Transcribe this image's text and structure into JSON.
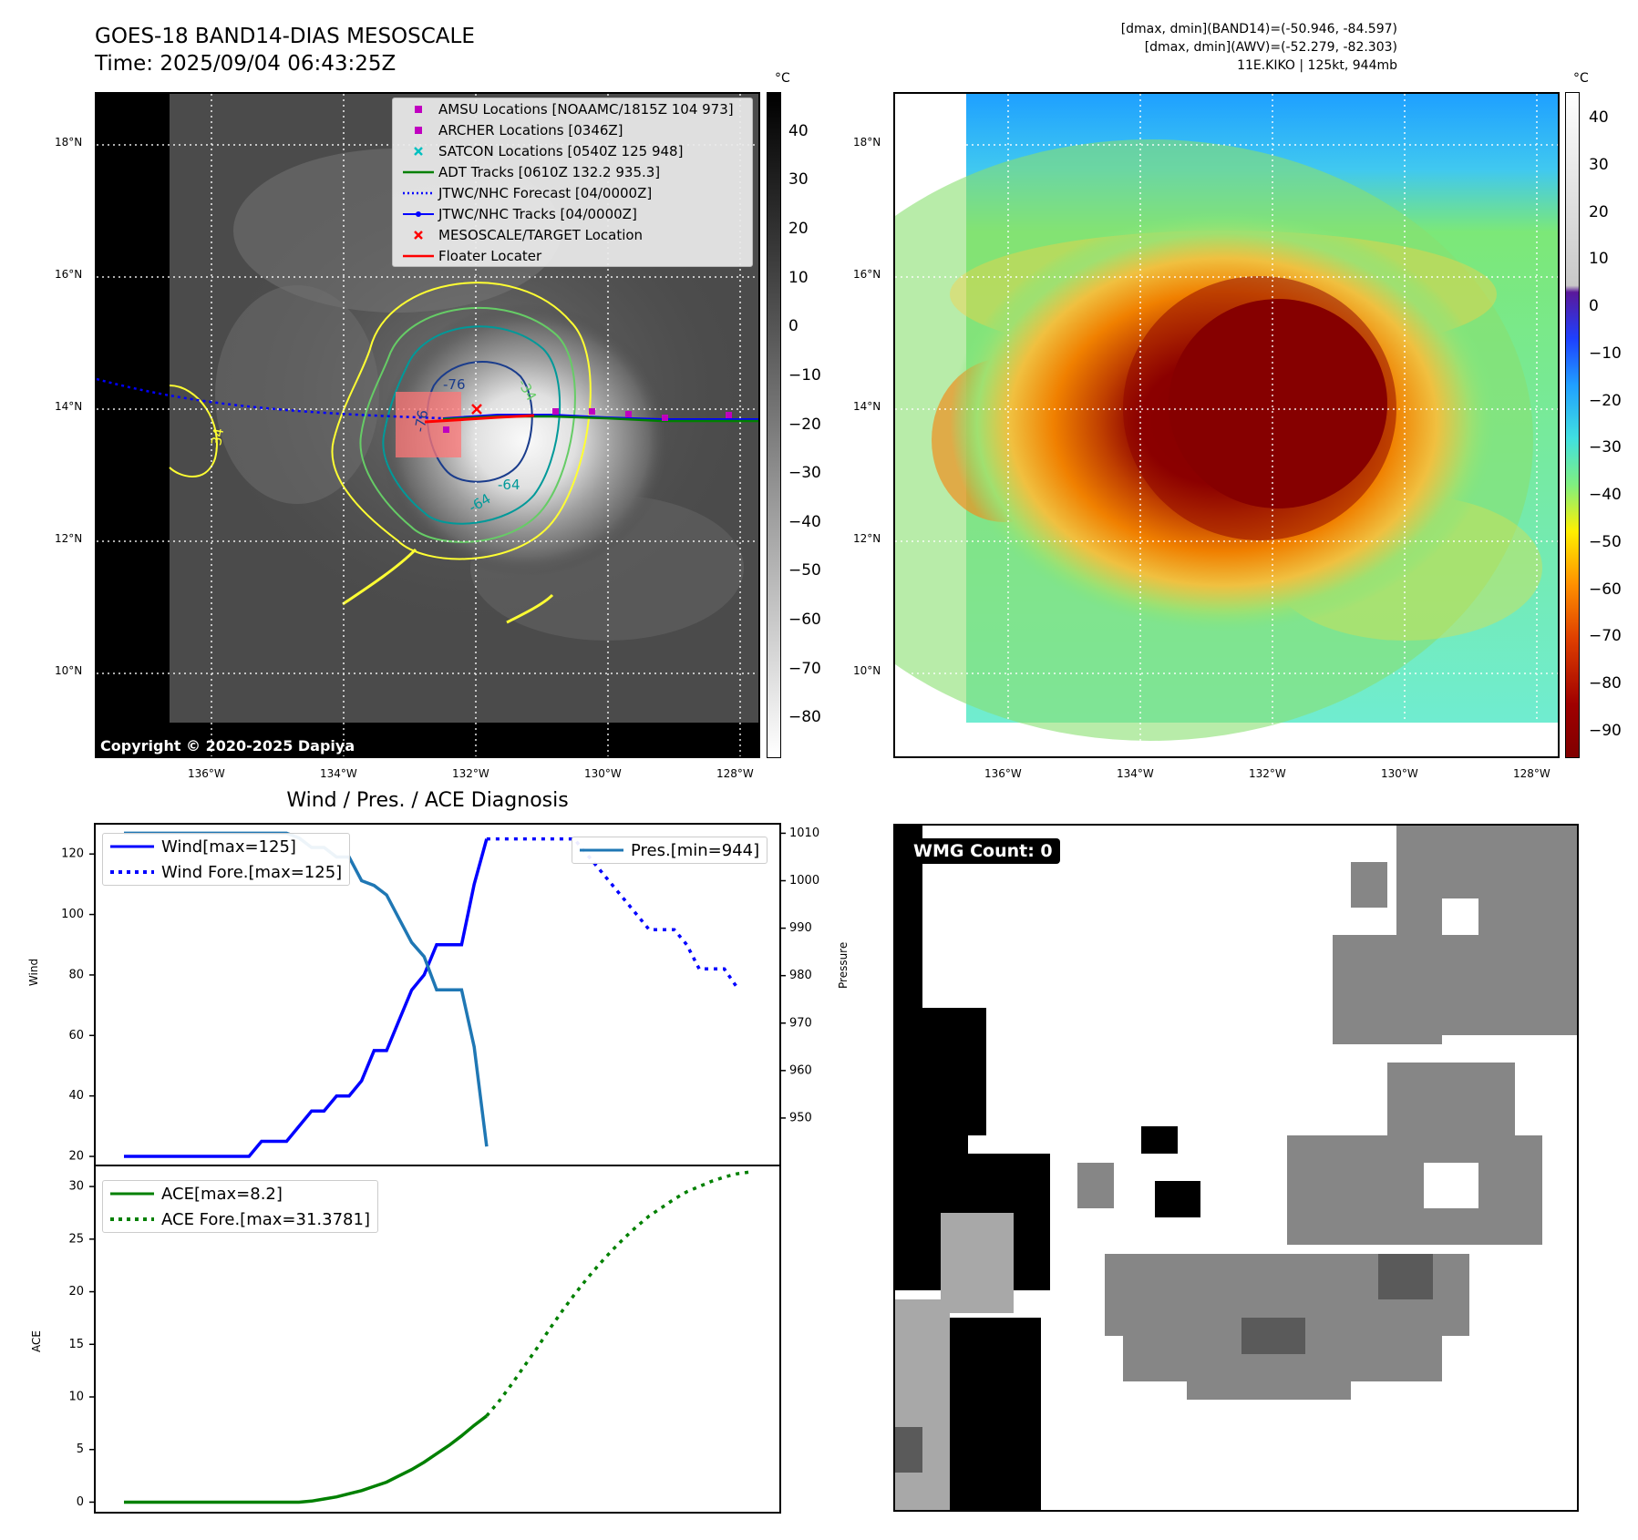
{
  "header": {
    "title_line1": "GOES-18 BAND14-DIAS MESOSCALE",
    "title_line2": "Time: 2025/09/04 06:43:25Z",
    "right_line1": "[dmax, dmin](BAND14)=(-50.946, -84.597)",
    "right_line2": "[dmax, dmin](AWV)=(-52.279, -82.303)",
    "right_line3": "11E.KIKO | 125kt, 944mb"
  },
  "map_left": {
    "lat_labels": [
      "18°N",
      "16°N",
      "14°N",
      "12°N",
      "10°N"
    ],
    "lon_labels": [
      "136°W",
      "134°W",
      "132°W",
      "130°W",
      "128°W"
    ],
    "copyright": "Copyright © 2020-2025 Dapiya",
    "contour_labels": [
      "-76",
      "-76",
      "-64",
      "-64",
      "-34",
      "-34"
    ],
    "legend": [
      {
        "label": "AMSU Locations [NOAAMC/1815Z 104 973]",
        "color": "#c000c0",
        "symbol": "square"
      },
      {
        "label": "ARCHER Locations [0346Z]",
        "color": "#c000c0",
        "symbol": "square"
      },
      {
        "label": "SATCON Locations [0540Z 125 948]",
        "color": "#00c0c0",
        "symbol": "x"
      },
      {
        "label": "ADT Tracks [0610Z 132.2 935.3]",
        "color": "#008000",
        "symbol": "line"
      },
      {
        "label": "JTWC/NHC Forecast [04/0000Z]",
        "color": "#0000ff",
        "symbol": "dotted"
      },
      {
        "label": "JTWC/NHC Tracks [04/0000Z]",
        "color": "#0000ff",
        "symbol": "line-dot"
      },
      {
        "label": "MESOSCALE/TARGET Location",
        "color": "#ff0000",
        "symbol": "x"
      },
      {
        "label": "Floater Locater",
        "color": "#ff0000",
        "symbol": "line"
      }
    ],
    "colorbar_unit": "°C",
    "colorbar_ticks": [
      "40",
      "30",
      "20",
      "10",
      "0",
      "−10",
      "−20",
      "−30",
      "−40",
      "−50",
      "−60",
      "−70",
      "−80"
    ]
  },
  "map_right": {
    "lat_labels": [
      "18°N",
      "16°N",
      "14°N",
      "12°N",
      "10°N"
    ],
    "lon_labels": [
      "136°W",
      "134°W",
      "132°W",
      "130°W",
      "128°W"
    ],
    "colorbar_unit": "°C",
    "colorbar_ticks": [
      "40",
      "30",
      "20",
      "10",
      "0",
      "−10",
      "−20",
      "−30",
      "−40",
      "−50",
      "−60",
      "−70",
      "−80",
      "−90"
    ]
  },
  "chart_data": [
    {
      "type": "line",
      "title": "Wind / Pres. / ACE Diagnosis",
      "ylabel": "Wind",
      "ylabel_right": "Pressure",
      "ylim": [
        17,
        130
      ],
      "ylim_right": [
        940,
        1012
      ],
      "yticks": [
        "120",
        "100",
        "80",
        "60",
        "40",
        "20"
      ],
      "yticks_right": [
        "1010",
        "1000",
        "990",
        "980",
        "970",
        "960",
        "950"
      ],
      "x": [
        0,
        1,
        2,
        3,
        4,
        5,
        6,
        7,
        8,
        9,
        10,
        11,
        12,
        13,
        14,
        15,
        16,
        17,
        18,
        19,
        20,
        21,
        22,
        23,
        24,
        25,
        26,
        27,
        28,
        29,
        30,
        31,
        32,
        33,
        34,
        35,
        36,
        37,
        38,
        39,
        40,
        41,
        42,
        43,
        44,
        45,
        46,
        47,
        48,
        49,
        50
      ],
      "series": [
        {
          "name": "Wind[max=125]",
          "color": "#0000ff",
          "style": "solid",
          "values": [
            20,
            20,
            20,
            20,
            20,
            20,
            20,
            20,
            20,
            20,
            20,
            25,
            25,
            25,
            30,
            35,
            35,
            40,
            40,
            45,
            55,
            55,
            65,
            75,
            80,
            90,
            90,
            90,
            110,
            125,
            null,
            null,
            null,
            null,
            null,
            null,
            null,
            null,
            null,
            null,
            null,
            null,
            null,
            null,
            null,
            null,
            null,
            null,
            null,
            null,
            null
          ]
        },
        {
          "name": "Wind Fore.[max=125]",
          "color": "#0000ff",
          "style": "dotted",
          "values": [
            null,
            null,
            null,
            null,
            null,
            null,
            null,
            null,
            null,
            null,
            null,
            null,
            null,
            null,
            null,
            null,
            null,
            null,
            null,
            null,
            null,
            null,
            null,
            null,
            null,
            null,
            null,
            null,
            null,
            125,
            125,
            125,
            125,
            125,
            125,
            125,
            125,
            120,
            115,
            110,
            105,
            100,
            95,
            95,
            95,
            90,
            82,
            82,
            82,
            76,
            null
          ]
        },
        {
          "name": "Pres.[min=944]",
          "color": "#1f77b4",
          "style": "solid",
          "axis": "right",
          "values": [
            1010,
            1010,
            1010,
            1010,
            1010,
            1010,
            1010,
            1010,
            1010,
            1010,
            1010,
            1010,
            1010,
            1010,
            1009,
            1007,
            1007,
            1005,
            1005,
            1000,
            999,
            997,
            992,
            987,
            984,
            977,
            977,
            977,
            965,
            944,
            null,
            null,
            null,
            null,
            null,
            null,
            null,
            null,
            null,
            null,
            null,
            null,
            null,
            null,
            null,
            null,
            null,
            null,
            null,
            null,
            null
          ]
        }
      ]
    },
    {
      "type": "line",
      "ylabel": "ACE",
      "ylim": [
        -1,
        32
      ],
      "yticks": [
        "30",
        "25",
        "20",
        "15",
        "10",
        "5",
        "0"
      ],
      "series": [
        {
          "name": "ACE[max=8.2]",
          "color": "#008000",
          "style": "solid",
          "values": [
            0,
            0,
            0,
            0,
            0,
            0,
            0,
            0,
            0,
            0,
            0,
            0,
            0,
            0,
            0,
            0.1,
            0.3,
            0.5,
            0.8,
            1.1,
            1.5,
            1.9,
            2.5,
            3.1,
            3.8,
            4.6,
            5.4,
            6.3,
            7.3,
            8.2,
            null,
            null,
            null,
            null,
            null,
            null,
            null,
            null,
            null,
            null,
            null,
            null,
            null,
            null,
            null,
            null,
            null,
            null,
            null,
            null,
            null
          ]
        },
        {
          "name": "ACE Fore.[max=31.3781]",
          "color": "#008000",
          "style": "dotted",
          "values": [
            null,
            null,
            null,
            null,
            null,
            null,
            null,
            null,
            null,
            null,
            null,
            null,
            null,
            null,
            null,
            null,
            null,
            null,
            null,
            null,
            null,
            null,
            null,
            null,
            null,
            null,
            null,
            null,
            null,
            8.2,
            9.6,
            11.2,
            12.9,
            14.6,
            16.4,
            18.1,
            19.7,
            21.2,
            22.6,
            23.9,
            25.1,
            26.2,
            27.2,
            28.0,
            28.8,
            29.5,
            30.0,
            30.5,
            30.9,
            31.2,
            31.3781
          ]
        }
      ]
    }
  ],
  "wmg": {
    "label": "WMG Count: 0"
  }
}
